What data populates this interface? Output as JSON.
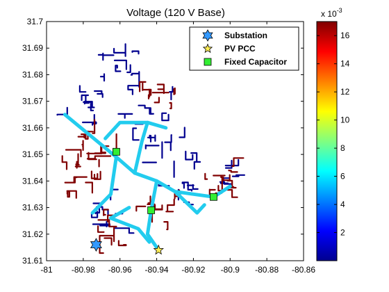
{
  "chart_data": {
    "type": "scatter",
    "title": "Voltage (120 V Base)",
    "xlim": [
      -81,
      -80.86
    ],
    "ylim": [
      31.61,
      31.7
    ],
    "xticks": [
      "-81",
      "-80.98",
      "-80.96",
      "-80.94",
      "-80.92",
      "-80.9",
      "-80.88",
      "-80.86"
    ],
    "yticks": [
      "31.61",
      "31.62",
      "31.63",
      "31.64",
      "31.65",
      "31.66",
      "31.67",
      "31.68",
      "31.69",
      "31.7"
    ],
    "colorbar": {
      "min": 0,
      "max": 17,
      "ticks": [
        "2",
        "4",
        "6",
        "8",
        "10",
        "12",
        "14",
        "16"
      ],
      "multiplier": "x 10",
      "exponent": "-3",
      "colors": [
        "#00008f",
        "#0000ff",
        "#0080ff",
        "#00ffff",
        "#80ff80",
        "#ffff00",
        "#ff8000",
        "#ff0000",
        "#800000"
      ]
    },
    "legend_position": "top-right",
    "series": [
      {
        "name": "Substation",
        "marker": "hexagram",
        "color": "#3399ff",
        "x": [
          -80.973
        ],
        "y": [
          31.616
        ]
      },
      {
        "name": "PV PCC",
        "marker": "star",
        "color": "#ffee55",
        "x": [
          -80.939
        ],
        "y": [
          31.614
        ]
      },
      {
        "name": "Fixed Capacitor",
        "marker": "square",
        "color": "#33ee33",
        "x": [
          -80.962,
          -80.943,
          -80.909
        ],
        "y": [
          31.651,
          31.629,
          31.634
        ]
      }
    ],
    "line_colors": {
      "low": "#00008f",
      "mid": "#22ccee",
      "high": "#800000"
    }
  }
}
